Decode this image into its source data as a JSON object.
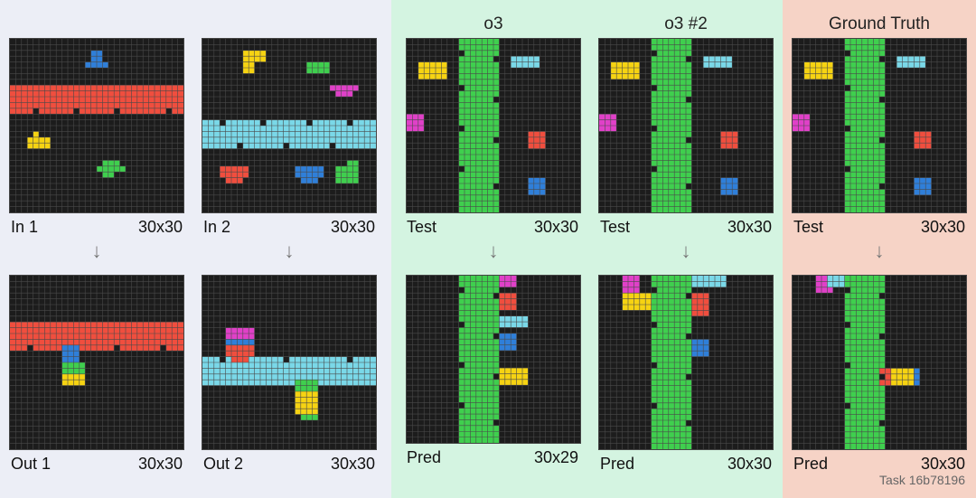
{
  "headers": {
    "o3": "o3",
    "o3_2": "o3 #2",
    "gt": "Ground Truth"
  },
  "task_label": "Task 16b78196",
  "arrow_glyph": "↓",
  "colors": {
    "background": "#1c1c1c",
    "gridline": "#4a4a4a",
    "red": "#f04e3e",
    "cyan": "#7ad8e8",
    "green": "#3fcf4e",
    "blue": "#2f7fd9",
    "yellow": "#f6d312",
    "magenta": "#e040c8"
  },
  "grid_size": 30,
  "panels": [
    {
      "id": "in1",
      "label": "In 1",
      "dims": "30x30",
      "rects": [
        {
          "c": "red",
          "x": 0,
          "y": 8,
          "w": 30,
          "h": 5
        },
        {
          "c": "blue",
          "x": 14,
          "y": 2,
          "w": 2,
          "h": 3
        },
        {
          "c": "blue",
          "x": 13,
          "y": 4,
          "w": 4,
          "h": 1
        },
        {
          "c": "yellow",
          "x": 3,
          "y": 17,
          "w": 4,
          "h": 2
        },
        {
          "c": "yellow",
          "x": 4,
          "y": 16,
          "w": 1,
          "h": 1
        },
        {
          "c": "green",
          "x": 16,
          "y": 21,
          "w": 3,
          "h": 2
        },
        {
          "c": "green",
          "x": 15,
          "y": 22,
          "w": 5,
          "h": 1
        },
        {
          "c": "green",
          "x": 16,
          "y": 23,
          "w": 2,
          "h": 1
        }
      ],
      "holes": [
        {
          "x": 4,
          "y": 12
        },
        {
          "x": 11,
          "y": 12
        },
        {
          "x": 18,
          "y": 12
        },
        {
          "x": 27,
          "y": 12
        }
      ]
    },
    {
      "id": "in2",
      "label": "In 2",
      "dims": "30x30",
      "rects": [
        {
          "c": "cyan",
          "x": 0,
          "y": 14,
          "w": 30,
          "h": 5
        },
        {
          "c": "yellow",
          "x": 7,
          "y": 2,
          "w": 4,
          "h": 2
        },
        {
          "c": "yellow",
          "x": 7,
          "y": 4,
          "w": 2,
          "h": 2
        },
        {
          "c": "green",
          "x": 18,
          "y": 4,
          "w": 4,
          "h": 2
        },
        {
          "c": "magenta",
          "x": 22,
          "y": 8,
          "w": 5,
          "h": 1
        },
        {
          "c": "magenta",
          "x": 23,
          "y": 9,
          "w": 3,
          "h": 1
        },
        {
          "c": "red",
          "x": 3,
          "y": 22,
          "w": 5,
          "h": 2
        },
        {
          "c": "red",
          "x": 4,
          "y": 24,
          "w": 3,
          "h": 1
        },
        {
          "c": "blue",
          "x": 16,
          "y": 22,
          "w": 5,
          "h": 2
        },
        {
          "c": "blue",
          "x": 17,
          "y": 24,
          "w": 3,
          "h": 1
        },
        {
          "c": "green",
          "x": 23,
          "y": 22,
          "w": 4,
          "h": 3
        },
        {
          "c": "green",
          "x": 25,
          "y": 21,
          "w": 2,
          "h": 1
        }
      ],
      "holes": [
        {
          "x": 3,
          "y": 14
        },
        {
          "x": 10,
          "y": 14
        },
        {
          "x": 18,
          "y": 14
        },
        {
          "x": 25,
          "y": 14
        },
        {
          "x": 6,
          "y": 18
        },
        {
          "x": 14,
          "y": 18
        },
        {
          "x": 22,
          "y": 18
        }
      ]
    },
    {
      "id": "out1",
      "label": "Out 1",
      "dims": "30x30",
      "rects": [
        {
          "c": "red",
          "x": 0,
          "y": 8,
          "w": 30,
          "h": 5
        },
        {
          "c": "blue",
          "x": 9,
          "y": 12,
          "w": 3,
          "h": 3
        },
        {
          "c": "green",
          "x": 9,
          "y": 15,
          "w": 4,
          "h": 2
        },
        {
          "c": "yellow",
          "x": 9,
          "y": 17,
          "w": 4,
          "h": 2
        }
      ],
      "holes": [
        {
          "x": 3,
          "y": 12
        },
        {
          "x": 18,
          "y": 12
        },
        {
          "x": 26,
          "y": 12
        }
      ]
    },
    {
      "id": "out2",
      "label": "Out 2",
      "dims": "30x30",
      "rects": [
        {
          "c": "cyan",
          "x": 0,
          "y": 14,
          "w": 30,
          "h": 5
        },
        {
          "c": "magenta",
          "x": 4,
          "y": 9,
          "w": 5,
          "h": 2
        },
        {
          "c": "blue",
          "x": 4,
          "y": 11,
          "w": 5,
          "h": 1
        },
        {
          "c": "red",
          "x": 4,
          "y": 12,
          "w": 5,
          "h": 2
        },
        {
          "c": "red",
          "x": 5,
          "y": 14,
          "w": 3,
          "h": 1
        },
        {
          "c": "green",
          "x": 16,
          "y": 18,
          "w": 4,
          "h": 2
        },
        {
          "c": "yellow",
          "x": 16,
          "y": 20,
          "w": 4,
          "h": 4
        },
        {
          "c": "green",
          "x": 17,
          "y": 24,
          "w": 3,
          "h": 1
        }
      ],
      "holes": [
        {
          "x": 3,
          "y": 14
        },
        {
          "x": 14,
          "y": 14
        },
        {
          "x": 25,
          "y": 14
        }
      ]
    },
    {
      "id": "test-o3",
      "label": "Test",
      "dims": "30x30",
      "rects": [
        {
          "c": "green",
          "x": 9,
          "y": 0,
          "w": 7,
          "h": 30
        },
        {
          "c": "yellow",
          "x": 2,
          "y": 4,
          "w": 5,
          "h": 3
        },
        {
          "c": "cyan",
          "x": 18,
          "y": 3,
          "w": 5,
          "h": 2
        },
        {
          "c": "magenta",
          "x": 0,
          "y": 13,
          "w": 3,
          "h": 3
        },
        {
          "c": "red",
          "x": 21,
          "y": 16,
          "w": 3,
          "h": 3
        },
        {
          "c": "blue",
          "x": 21,
          "y": 24,
          "w": 3,
          "h": 3
        }
      ],
      "holes": [
        {
          "x": 9,
          "y": 2
        },
        {
          "x": 15,
          "y": 3
        },
        {
          "x": 9,
          "y": 8
        },
        {
          "x": 15,
          "y": 10
        },
        {
          "x": 9,
          "y": 15
        },
        {
          "x": 15,
          "y": 17
        },
        {
          "x": 9,
          "y": 22
        },
        {
          "x": 15,
          "y": 25
        }
      ]
    },
    {
      "id": "test-o3-2",
      "label": "Test",
      "dims": "30x30",
      "rects": [
        {
          "c": "green",
          "x": 9,
          "y": 0,
          "w": 7,
          "h": 30
        },
        {
          "c": "yellow",
          "x": 2,
          "y": 4,
          "w": 5,
          "h": 3
        },
        {
          "c": "cyan",
          "x": 18,
          "y": 3,
          "w": 5,
          "h": 2
        },
        {
          "c": "magenta",
          "x": 0,
          "y": 13,
          "w": 3,
          "h": 3
        },
        {
          "c": "red",
          "x": 21,
          "y": 16,
          "w": 3,
          "h": 3
        },
        {
          "c": "blue",
          "x": 21,
          "y": 24,
          "w": 3,
          "h": 3
        }
      ],
      "holes": [
        {
          "x": 9,
          "y": 2
        },
        {
          "x": 15,
          "y": 3
        },
        {
          "x": 9,
          "y": 8
        },
        {
          "x": 15,
          "y": 10
        },
        {
          "x": 9,
          "y": 15
        },
        {
          "x": 15,
          "y": 17
        },
        {
          "x": 9,
          "y": 22
        },
        {
          "x": 15,
          "y": 25
        }
      ]
    },
    {
      "id": "test-gt",
      "label": "Test",
      "dims": "30x30",
      "rects": [
        {
          "c": "green",
          "x": 9,
          "y": 0,
          "w": 7,
          "h": 30
        },
        {
          "c": "yellow",
          "x": 2,
          "y": 4,
          "w": 5,
          "h": 3
        },
        {
          "c": "cyan",
          "x": 18,
          "y": 3,
          "w": 5,
          "h": 2
        },
        {
          "c": "magenta",
          "x": 0,
          "y": 13,
          "w": 3,
          "h": 3
        },
        {
          "c": "red",
          "x": 21,
          "y": 16,
          "w": 3,
          "h": 3
        },
        {
          "c": "blue",
          "x": 21,
          "y": 24,
          "w": 3,
          "h": 3
        }
      ],
      "holes": [
        {
          "x": 9,
          "y": 2
        },
        {
          "x": 15,
          "y": 3
        },
        {
          "x": 9,
          "y": 8
        },
        {
          "x": 15,
          "y": 10
        },
        {
          "x": 9,
          "y": 15
        },
        {
          "x": 15,
          "y": 17
        },
        {
          "x": 9,
          "y": 22
        },
        {
          "x": 15,
          "y": 25
        }
      ]
    },
    {
      "id": "pred-o3",
      "label": "Pred",
      "dims": "30x29",
      "rects": [
        {
          "c": "green",
          "x": 9,
          "y": 0,
          "w": 7,
          "h": 29
        },
        {
          "c": "magenta",
          "x": 16,
          "y": 0,
          "w": 3,
          "h": 2
        },
        {
          "c": "red",
          "x": 16,
          "y": 3,
          "w": 3,
          "h": 3
        },
        {
          "c": "cyan",
          "x": 16,
          "y": 7,
          "w": 5,
          "h": 2
        },
        {
          "c": "blue",
          "x": 16,
          "y": 10,
          "w": 3,
          "h": 3
        },
        {
          "c": "yellow",
          "x": 16,
          "y": 16,
          "w": 5,
          "h": 3
        }
      ],
      "holes": [
        {
          "x": 9,
          "y": 2
        },
        {
          "x": 15,
          "y": 3
        },
        {
          "x": 9,
          "y": 8
        },
        {
          "x": 15,
          "y": 10
        },
        {
          "x": 9,
          "y": 15
        },
        {
          "x": 15,
          "y": 17
        },
        {
          "x": 9,
          "y": 22
        },
        {
          "x": 15,
          "y": 25
        }
      ]
    },
    {
      "id": "pred-o3-2",
      "label": "Pred",
      "dims": "30x30",
      "rects": [
        {
          "c": "green",
          "x": 9,
          "y": 0,
          "w": 7,
          "h": 30
        },
        {
          "c": "magenta",
          "x": 4,
          "y": 0,
          "w": 3,
          "h": 3
        },
        {
          "c": "yellow",
          "x": 4,
          "y": 3,
          "w": 5,
          "h": 3
        },
        {
          "c": "cyan",
          "x": 16,
          "y": 0,
          "w": 6,
          "h": 2
        },
        {
          "c": "red",
          "x": 16,
          "y": 3,
          "w": 3,
          "h": 4
        },
        {
          "c": "blue",
          "x": 16,
          "y": 11,
          "w": 3,
          "h": 3
        }
      ],
      "holes": [
        {
          "x": 9,
          "y": 2
        },
        {
          "x": 15,
          "y": 3
        },
        {
          "x": 9,
          "y": 8
        },
        {
          "x": 15,
          "y": 10
        },
        {
          "x": 9,
          "y": 15
        },
        {
          "x": 15,
          "y": 17
        },
        {
          "x": 9,
          "y": 22
        },
        {
          "x": 15,
          "y": 25
        }
      ]
    },
    {
      "id": "pred-gt",
      "label": "Pred",
      "dims": "30x30",
      "rects": [
        {
          "c": "green",
          "x": 9,
          "y": 0,
          "w": 7,
          "h": 30
        },
        {
          "c": "magenta",
          "x": 4,
          "y": 0,
          "w": 3,
          "h": 3
        },
        {
          "c": "cyan",
          "x": 6,
          "y": 0,
          "w": 3,
          "h": 2
        },
        {
          "c": "red",
          "x": 15,
          "y": 16,
          "w": 3,
          "h": 3
        },
        {
          "c": "yellow",
          "x": 17,
          "y": 16,
          "w": 4,
          "h": 3
        },
        {
          "c": "blue",
          "x": 21,
          "y": 16,
          "w": 1,
          "h": 3
        }
      ],
      "holes": [
        {
          "x": 9,
          "y": 2
        },
        {
          "x": 15,
          "y": 3
        },
        {
          "x": 9,
          "y": 8
        },
        {
          "x": 15,
          "y": 10
        },
        {
          "x": 9,
          "y": 15
        },
        {
          "x": 15,
          "y": 17
        },
        {
          "x": 9,
          "y": 22
        },
        {
          "x": 15,
          "y": 25
        }
      ]
    }
  ]
}
